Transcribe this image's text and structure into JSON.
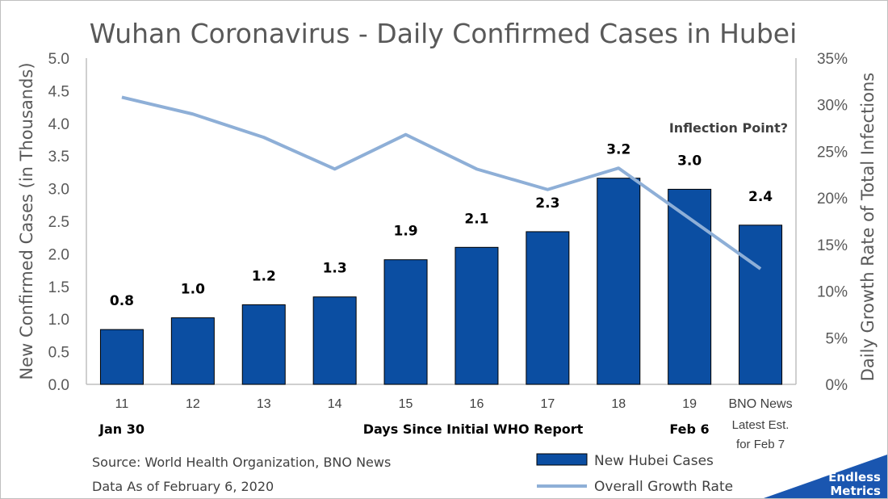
{
  "chart_data": {
    "type": "bar+line",
    "title": "Wuhan Coronavirus - Daily Confirmed Cases in Hubei",
    "ylabel": "New Confirmed Cases (in Thousands)",
    "y2label": "Daily Growth Rate of Total Infections",
    "xlabel": "Days Since Initial WHO Report",
    "ylim": [
      0,
      5
    ],
    "y2lim": [
      0,
      35
    ],
    "yticks": [
      "0.0",
      "0.5",
      "1.0",
      "1.5",
      "2.0",
      "2.5",
      "3.0",
      "3.5",
      "4.0",
      "4.5",
      "5.0"
    ],
    "y2ticks": [
      "0%",
      "5%",
      "10%",
      "15%",
      "20%",
      "25%",
      "30%",
      "35%"
    ],
    "categories": [
      "11",
      "12",
      "13",
      "14",
      "15",
      "16",
      "17",
      "18",
      "19",
      "BNO News"
    ],
    "category_extra": [
      "Latest Est.",
      "for Feb 7"
    ],
    "grid": false,
    "series": [
      {
        "name": "New Hubei Cases",
        "type": "bar",
        "color": "#0b4ea2",
        "values": [
          0.8,
          1.0,
          1.2,
          1.3,
          1.9,
          2.1,
          2.3,
          3.2,
          3.0,
          2.4
        ],
        "plotted": [
          0.84,
          1.02,
          1.22,
          1.34,
          1.91,
          2.1,
          2.34,
          3.16,
          2.99,
          2.44
        ],
        "labels": [
          "0.8",
          "1.0",
          "1.2",
          "1.3",
          "1.9",
          "2.1",
          "2.3",
          "3.2",
          "3.0",
          "2.4"
        ]
      },
      {
        "name": "Overall Growth Rate",
        "type": "line",
        "axis": "right",
        "color": "#8eafd7",
        "values": [
          30.8,
          29.0,
          26.5,
          23.1,
          26.8,
          23.1,
          20.9,
          23.2,
          17.8,
          12.4
        ]
      }
    ],
    "legend": "bottom-right"
  },
  "annotations": {
    "start_date": "Jan 30",
    "end_date": "Feb 6",
    "inflection": "Inflection Point?"
  },
  "source": {
    "line1": "Source: World Health Organization, BNO News",
    "line2": "Data As of February 6, 2020"
  },
  "logo": {
    "line1": "Endless",
    "line2": "Metrics",
    "color": "#1a56b0"
  }
}
